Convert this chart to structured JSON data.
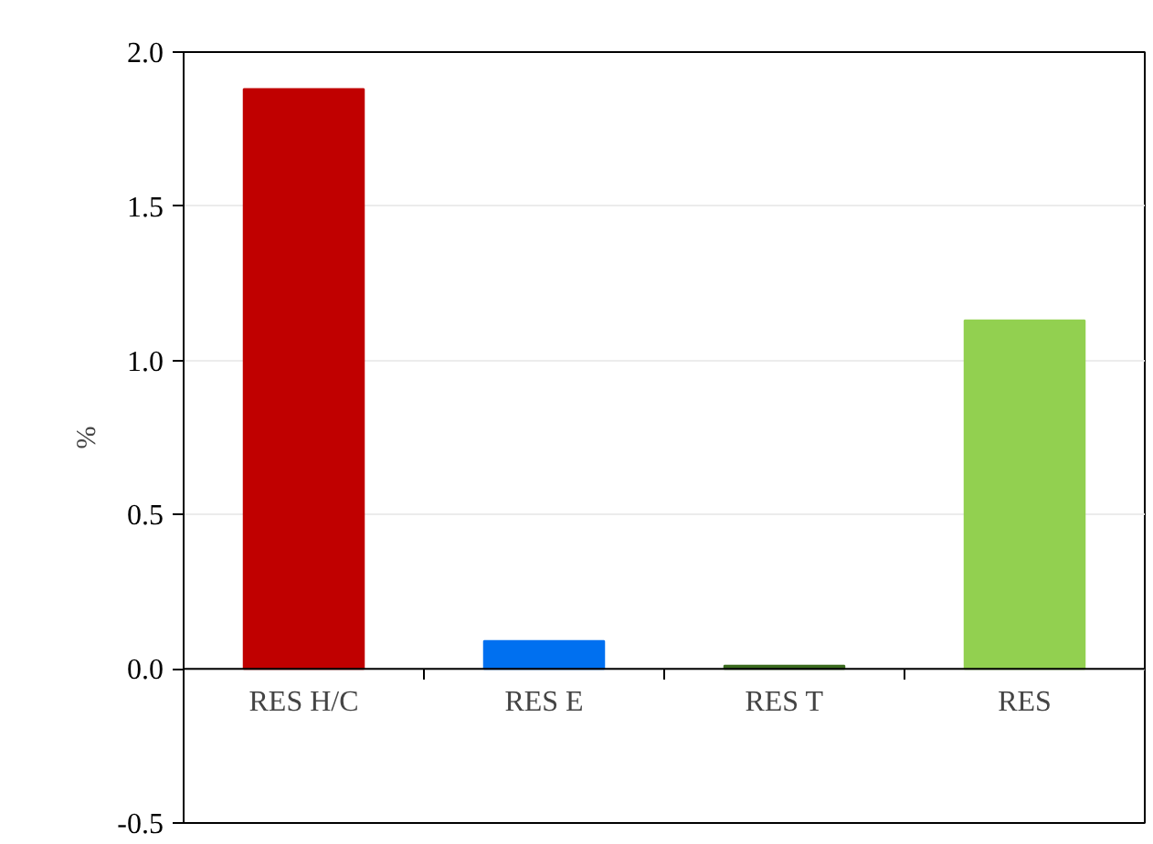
{
  "chart_data": {
    "type": "bar",
    "ylabel": "%",
    "categories": [
      "RES H/C",
      "RES E",
      "RES T",
      "RES"
    ],
    "values": [
      1.88,
      0.09,
      0.01,
      1.13
    ],
    "colors": [
      "#c00000",
      "#0070f0",
      "#3a6b1e",
      "#92d050"
    ],
    "ylim": [
      -0.5,
      2.0
    ],
    "yticks": [
      {
        "value": -0.5,
        "label": "-0.5"
      },
      {
        "value": 0,
        "label": "0.0"
      },
      {
        "value": 0.5,
        "label": "0.5"
      },
      {
        "value": 1.0,
        "label": "1.0"
      },
      {
        "value": 1.5,
        "label": "1.5"
      },
      {
        "value": 2.0,
        "label": "2.0"
      }
    ],
    "grid": "y"
  }
}
